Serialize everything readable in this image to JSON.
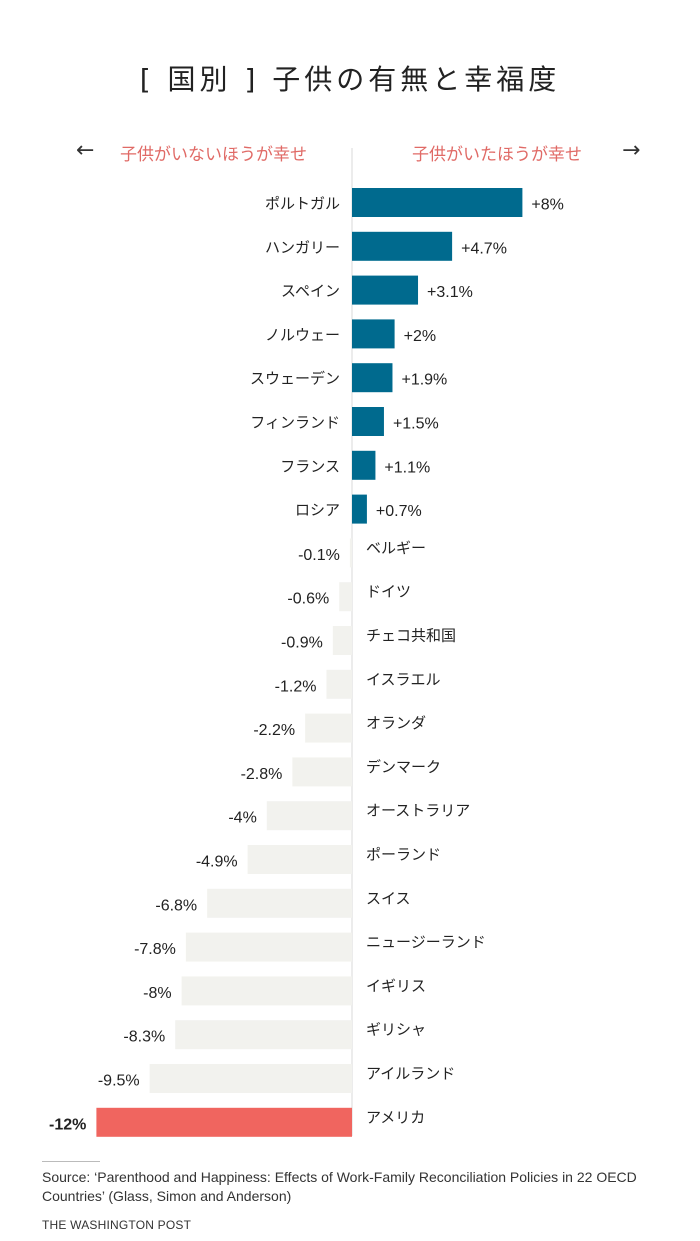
{
  "header": {
    "title": "[ 国別 ] 子供の有無と幸福度",
    "left_direction": "子供がいないほうが幸せ",
    "right_direction": "子供がいたほうが幸せ",
    "left_arrow": "←",
    "right_arrow": "→"
  },
  "colors": {
    "positive": "#006a8e",
    "negative": "#f2f2ee",
    "highlight": "#f0655f",
    "direction_text": "#e06a66"
  },
  "chart_data": {
    "type": "bar",
    "orientation": "horizontal",
    "title": "[ 国別 ] 子供の有無と幸福度",
    "unit": "%",
    "categories": [
      "ポルトガル",
      "ハンガリー",
      "スペイン",
      "ノルウェー",
      "スウェーデン",
      "フィンランド",
      "フランス",
      "ロシア",
      "ベルギー",
      "ドイツ",
      "チェコ共和国",
      "イスラエル",
      "オランダ",
      "デンマーク",
      "オーストラリア",
      "ポーランド",
      "スイス",
      "ニュージーランド",
      "イギリス",
      "ギリシャ",
      "アイルランド",
      "アメリカ"
    ],
    "values": [
      8,
      4.7,
      3.1,
      2,
      1.9,
      1.5,
      1.1,
      0.7,
      -0.1,
      -0.6,
      -0.9,
      -1.2,
      -2.2,
      -2.8,
      -4,
      -4.9,
      -6.8,
      -7.8,
      -8,
      -8.3,
      -9.5,
      -12
    ],
    "value_labels": [
      "+8%",
      "+4.7%",
      "+3.1%",
      "+2%",
      "+1.9%",
      "+1.5%",
      "+1.1%",
      "+0.7%",
      "-0.1%",
      "-0.6%",
      "-0.9%",
      "-1.2%",
      "-2.2%",
      "-2.8%",
      "-4%",
      "-4.9%",
      "-6.8%",
      "-7.8%",
      "-8%",
      "-8.3%",
      "-9.5%",
      "-12%"
    ],
    "highlight_category": "アメリカ",
    "xlim": [
      -12,
      8
    ]
  },
  "footer": {
    "source": "Source: ‘Parenthood and Happiness: Effects of Work-Family Reconciliation Policies in 22 OECD Countries’ (Glass, Simon and Anderson)",
    "credit": "THE WASHINGTON POST"
  }
}
